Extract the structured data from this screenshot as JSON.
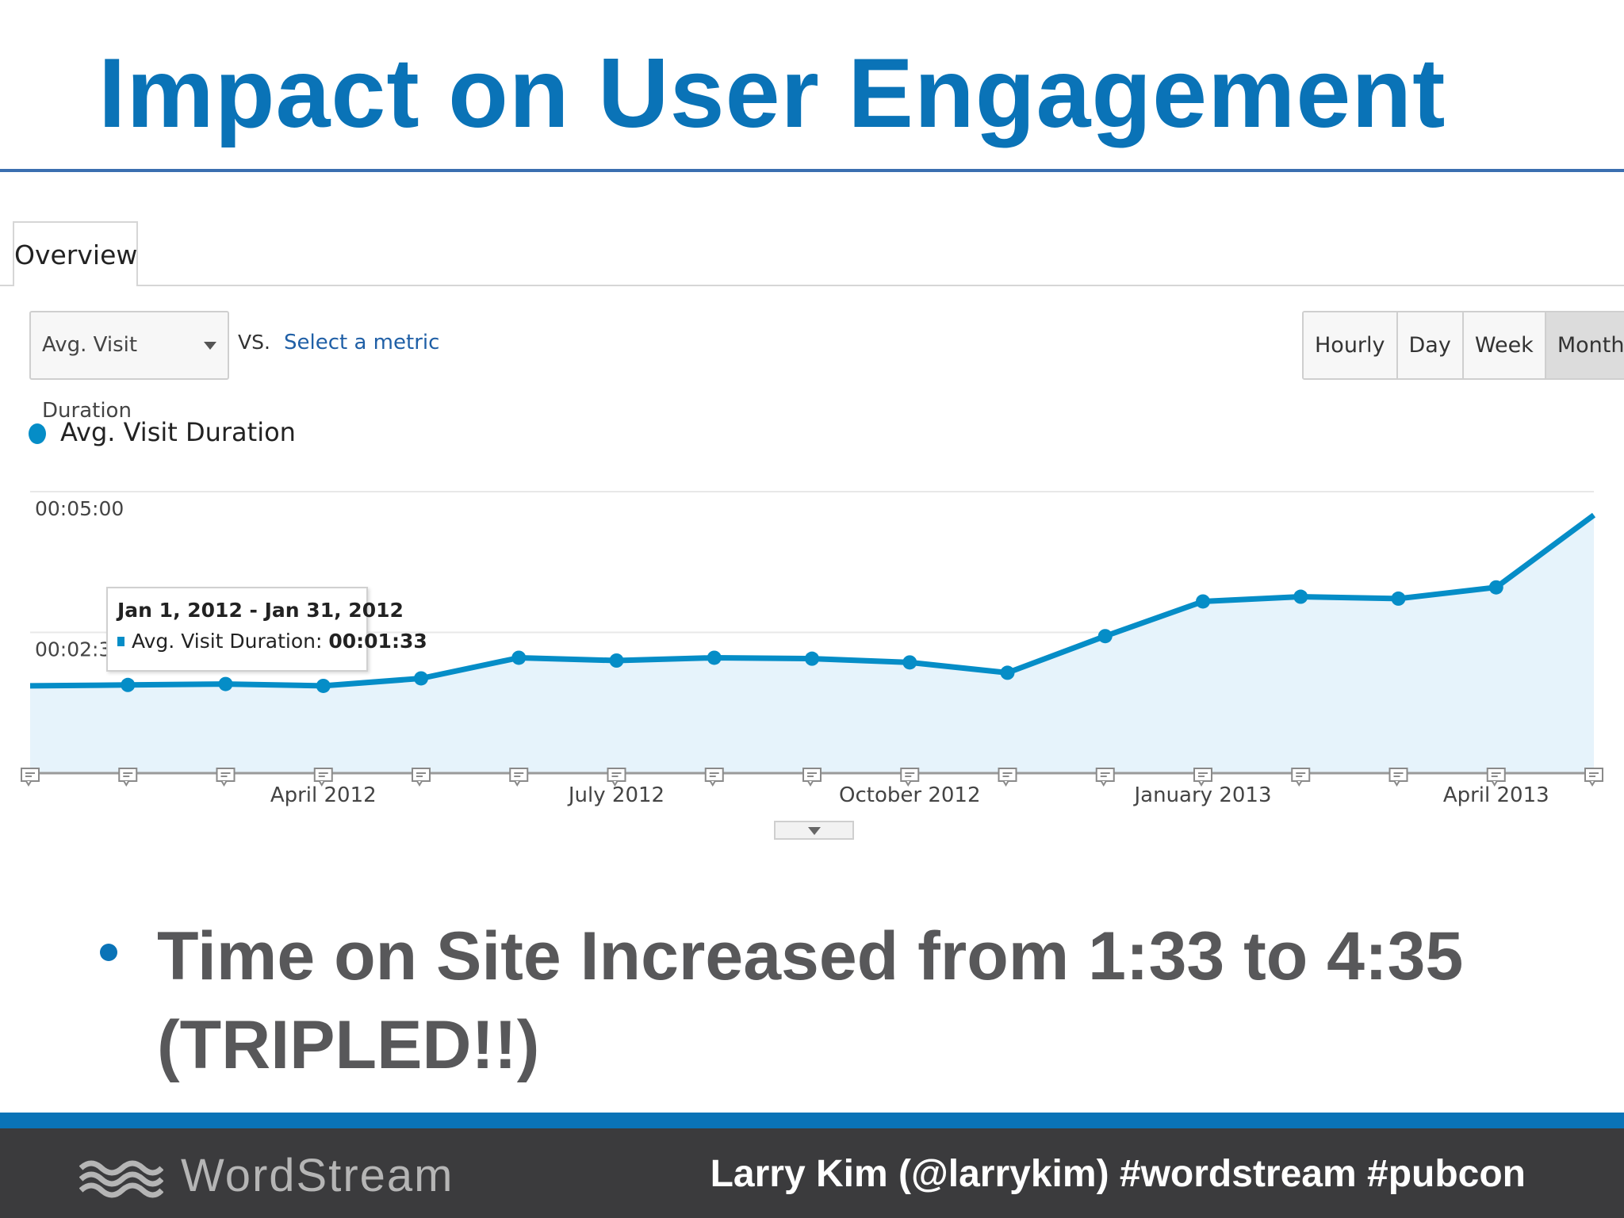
{
  "slide": {
    "title": "Impact on User Engagement",
    "bullet": "Time on Site Increased from 1:33 to 4:35 (TRIPLED!!)"
  },
  "analytics": {
    "tab": "Overview",
    "metric": "Avg. Visit Duration",
    "vs": "VS.",
    "select_metric": "Select a metric",
    "granularity": [
      "Hourly",
      "Day",
      "Week",
      "Month"
    ],
    "active_granularity": "Month",
    "legend": "Avg. Visit Duration",
    "tooltip": {
      "date": "Jan 1, 2012 - Jan 31, 2012",
      "label": "Avg. Visit Duration:",
      "value": "00:01:33"
    },
    "icons": [
      "dropdown-caret-icon",
      "annotation-icon",
      "expand-caret-icon",
      "wordstream-logo-icon"
    ]
  },
  "chart_data": {
    "type": "area",
    "series": [
      {
        "name": "Avg. Visit Duration",
        "x": [
          "Jan 2012",
          "Feb 2012",
          "Mar 2012",
          "Apr 2012",
          "May 2012",
          "Jun 2012",
          "Jul 2012",
          "Aug 2012",
          "Sep 2012",
          "Oct 2012",
          "Nov 2012",
          "Dec 2012",
          "Jan 2013",
          "Feb 2013",
          "Mar 2013",
          "Apr 2013",
          "May 2013"
        ],
        "values_seconds": [
          93,
          94,
          95,
          93,
          101,
          123,
          120,
          123,
          122,
          118,
          107,
          146,
          183,
          188,
          186,
          198,
          275
        ]
      }
    ],
    "yticks": [
      "00:05:00",
      "00:02:30"
    ],
    "ylim_seconds": [
      0,
      300
    ],
    "xticks": [
      "April 2012",
      "July 2012",
      "October 2012",
      "January 2013",
      "April 2013"
    ],
    "color": "#058dc7",
    "fill": "#e6f3fb"
  },
  "footer": {
    "brand": "WordStream",
    "credit": "Larry Kim (@larrykim) #wordstream #pubcon",
    "accent": "#0a73b7"
  }
}
